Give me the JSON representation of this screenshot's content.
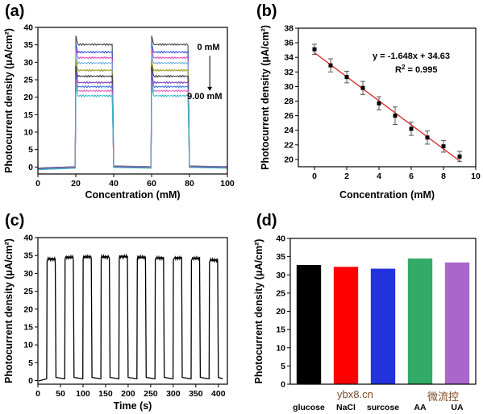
{
  "watermark": {
    "site": "ybx8.cn",
    "brand": "微流控"
  },
  "chart_data": [
    {
      "panel": "(a)",
      "type": "line",
      "xlabel": "Concentration (mM)",
      "ylabel": "Photocurrent density (μA/cm²)",
      "xlim": [
        0,
        100
      ],
      "ylim": [
        -2,
        40
      ],
      "xticks": [
        0,
        20,
        40,
        60,
        80,
        100
      ],
      "yticks": [
        0,
        5,
        10,
        15,
        20,
        25,
        30,
        35,
        40
      ],
      "on_periods": [
        [
          20,
          40
        ],
        [
          60,
          80
        ]
      ],
      "series_levels": [
        35.1,
        32.9,
        31.3,
        29.8,
        27.7,
        26.0,
        24.2,
        23.0,
        21.8,
        20.4
      ],
      "series_colors": [
        "#444444",
        "#2f4fd8",
        "#d94ec0",
        "#6fb0e8",
        "#9a9a20",
        "#333333",
        "#7a3fb8",
        "#3a6fd8",
        "#e060c0",
        "#34b8c8"
      ],
      "annotations": [
        {
          "text": "0 mM",
          "x": 90,
          "y": 33.5
        },
        {
          "text": "9.00 mM",
          "x": 88,
          "y": 19.5
        }
      ]
    },
    {
      "panel": "(b)",
      "type": "scatter",
      "xlabel": "Concentration (mM)",
      "ylabel": "Photocurrent density (μA/cm²)",
      "xlim": [
        -1,
        10
      ],
      "ylim": [
        19,
        38
      ],
      "xticks": [
        0,
        2,
        4,
        6,
        8,
        10
      ],
      "yticks": [
        20,
        22,
        24,
        26,
        28,
        30,
        32,
        34,
        36,
        38
      ],
      "x": [
        0,
        1,
        2,
        3,
        4,
        5,
        6,
        7,
        8,
        9
      ],
      "y": [
        35.1,
        32.9,
        31.3,
        29.8,
        27.7,
        26.0,
        24.2,
        23.0,
        21.8,
        20.4
      ],
      "yerr": [
        0.7,
        0.9,
        0.8,
        0.9,
        0.9,
        1.2,
        0.9,
        0.9,
        0.8,
        0.7
      ],
      "fit": {
        "slope": -1.648,
        "intercept": 34.63,
        "color": "#e02020"
      },
      "equation": "y = -1.648x + 34.63",
      "r2_label": "R",
      "r2_value": "2",
      "r2_rest": " = 0.995"
    },
    {
      "panel": "(c)",
      "type": "line",
      "xlabel": "Time (s)",
      "ylabel": "Photocurrent density (μA/cm²)",
      "xlim": [
        0,
        420
      ],
      "ylim": [
        -1,
        40
      ],
      "xticks": [
        0,
        50,
        100,
        150,
        200,
        250,
        300,
        350,
        400
      ],
      "yticks": [
        0,
        5,
        10,
        15,
        20,
        25,
        30,
        35,
        40
      ],
      "on_periods": [
        [
          20,
          40
        ],
        [
          60,
          80
        ],
        [
          100,
          120
        ],
        [
          140,
          160
        ],
        [
          180,
          200
        ],
        [
          220,
          240
        ],
        [
          260,
          280
        ],
        [
          300,
          320
        ],
        [
          340,
          360
        ],
        [
          380,
          400
        ]
      ],
      "on_levels": [
        34.0,
        34.5,
        34.6,
        34.6,
        34.7,
        34.5,
        34.3,
        34.3,
        34.2,
        33.7
      ],
      "off_level": 0.5
    },
    {
      "panel": "(d)",
      "type": "bar",
      "ylabel": "Photocurrent density (μA/cm²)",
      "ylim": [
        0,
        40
      ],
      "yticks": [
        0,
        5,
        10,
        15,
        20,
        25,
        30,
        35,
        40
      ],
      "categories": [
        "glucose",
        "NaCl",
        "surcose",
        "AA",
        "UA"
      ],
      "values": [
        32.7,
        32.2,
        31.7,
        34.5,
        33.4
      ],
      "colors": [
        "#000000",
        "#ff0000",
        "#2233dd",
        "#33aa66",
        "#aa66cc"
      ]
    }
  ]
}
